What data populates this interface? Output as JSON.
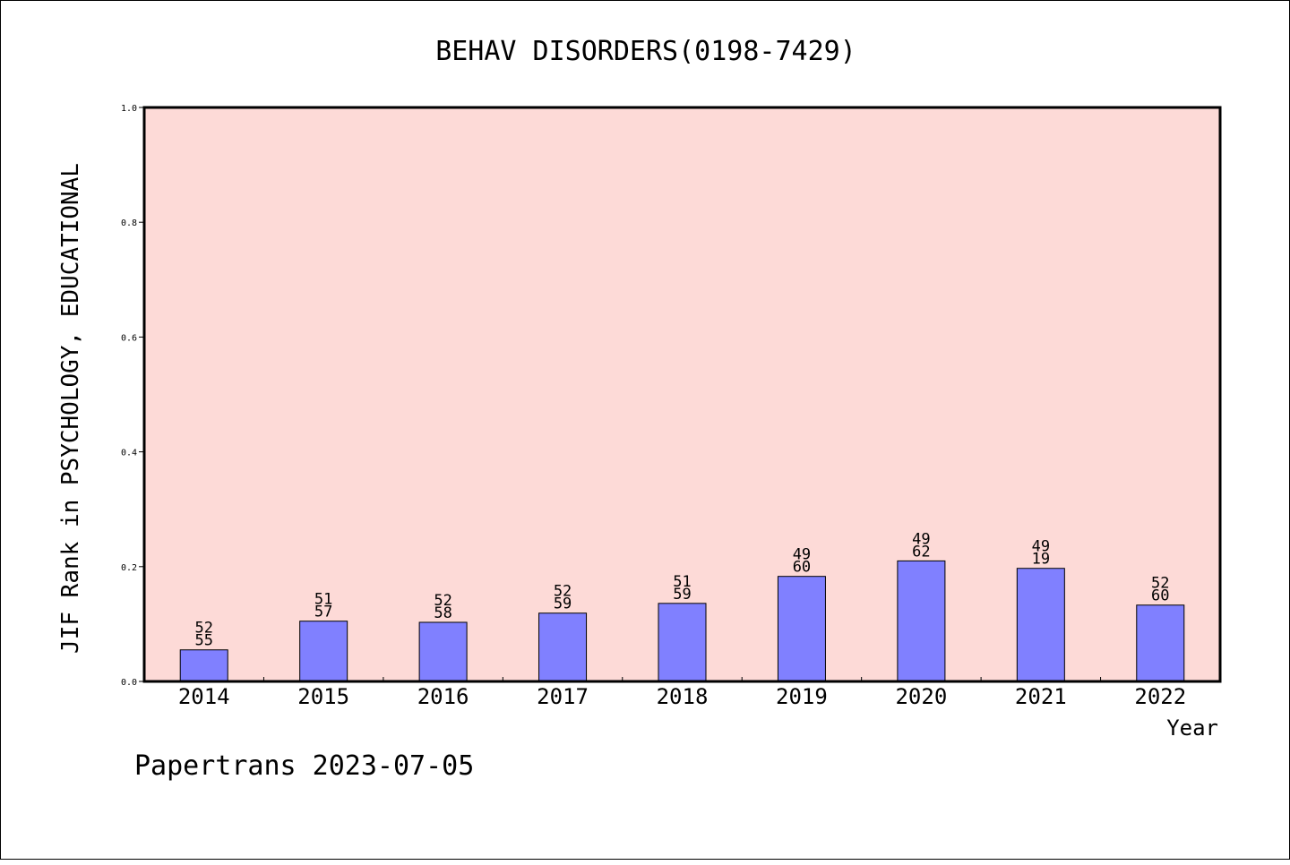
{
  "chart_data": {
    "type": "bar",
    "title": "BEHAV DISORDERS(0198-7429)",
    "xlabel": "Year",
    "ylabel": "JIF Rank in PSYCHOLOGY, EDUCATIONAL",
    "ylim": [
      0,
      1.0
    ],
    "yticks": [
      "0.0",
      "0.2",
      "0.4",
      "0.6",
      "0.8",
      "1.0"
    ],
    "categories": [
      "2014",
      "2015",
      "2016",
      "2017",
      "2018",
      "2019",
      "2020",
      "2021",
      "2022"
    ],
    "values": [
      0.055,
      0.105,
      0.103,
      0.119,
      0.136,
      0.183,
      0.21,
      0.197,
      0.133
    ],
    "label_top": [
      "52",
      "51",
      "52",
      "52",
      "51",
      "49",
      "49",
      "49",
      "52"
    ],
    "label_bottom": [
      "55",
      "57",
      "58",
      "59",
      "59",
      "60",
      "62",
      "19",
      "60"
    ],
    "grid": false,
    "colors": {
      "plot_background": "#fddad7",
      "bar_fill": "#8080ff",
      "bar_stroke": "#000000"
    }
  },
  "footer": "Papertrans 2023-07-05"
}
